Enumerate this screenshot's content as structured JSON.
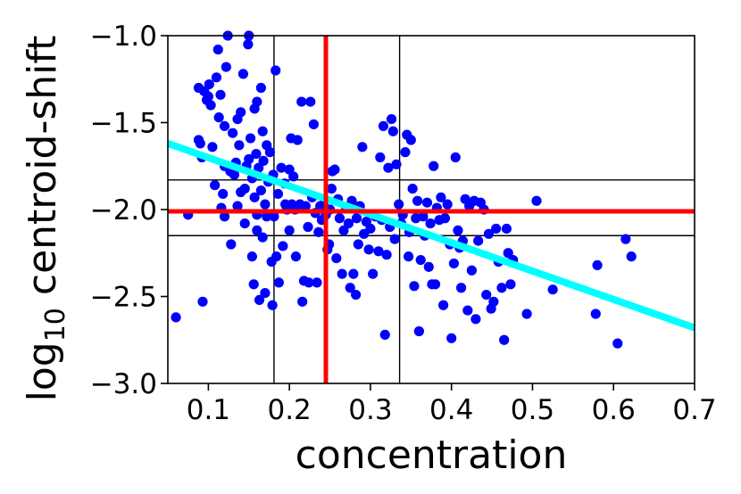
{
  "chart_data": {
    "type": "scatter",
    "xlabel": "concentration",
    "ylabel_main": "log",
    "ylabel_sub": "10",
    "ylabel_rest": " centroid-shift",
    "xlim": [
      0.05,
      0.7
    ],
    "ylim": [
      -3.0,
      -1.0
    ],
    "xticks": [
      0.1,
      0.2,
      0.3,
      0.4,
      0.5,
      0.6,
      0.7
    ],
    "xtick_labels": [
      "0.1",
      "0.2",
      "0.3",
      "0.4",
      "0.5",
      "0.6",
      "0.7"
    ],
    "yticks": [
      -1.0,
      -1.5,
      -2.0,
      -2.5,
      -3.0
    ],
    "ytick_labels": [
      "−1.0",
      "−1.5",
      "−2.0",
      "−2.5",
      "−3.0"
    ],
    "grid": false,
    "colors": {
      "points": "#0000ff",
      "fit": "#00ffff",
      "median": "#ff0000",
      "quartile": "#000000"
    },
    "fit_line": {
      "x": [
        0.05,
        0.7
      ],
      "y": [
        -1.62,
        -2.68
      ]
    },
    "median_lines": {
      "x": 0.245,
      "y": -2.01
    },
    "quartile_lines": {
      "x": [
        0.181,
        0.336
      ],
      "y": [
        -1.83,
        -2.15
      ]
    },
    "points": [
      [
        0.06,
        -2.62
      ],
      [
        0.075,
        -2.03
      ],
      [
        0.088,
        -1.3
      ],
      [
        0.088,
        -1.6
      ],
      [
        0.09,
        -1.62
      ],
      [
        0.092,
        -1.7
      ],
      [
        0.093,
        -2.53
      ],
      [
        0.095,
        -1.32
      ],
      [
        0.098,
        -1.37
      ],
      [
        0.1,
        -1.35
      ],
      [
        0.101,
        -1.28
      ],
      [
        0.103,
        -1.4
      ],
      [
        0.105,
        -1.64
      ],
      [
        0.108,
        -1.86
      ],
      [
        0.11,
        -1.24
      ],
      [
        0.112,
        -1.08
      ],
      [
        0.113,
        -1.47
      ],
      [
        0.115,
        -1.34
      ],
      [
        0.116,
        -1.99
      ],
      [
        0.118,
        -1.91
      ],
      [
        0.12,
        -1.75
      ],
      [
        0.12,
        -2.04
      ],
      [
        0.12,
        -1.52
      ],
      [
        0.122,
        -1.18
      ],
      [
        0.124,
        -1.0
      ],
      [
        0.127,
        -1.78
      ],
      [
        0.128,
        -2.2
      ],
      [
        0.13,
        -1.56
      ],
      [
        0.132,
        -1.8
      ],
      [
        0.134,
        -1.73
      ],
      [
        0.136,
        -1.98
      ],
      [
        0.136,
        -1.48
      ],
      [
        0.138,
        -1.63
      ],
      [
        0.14,
        -1.44
      ],
      [
        0.14,
        -1.9
      ],
      [
        0.143,
        -1.22
      ],
      [
        0.145,
        -1.88
      ],
      [
        0.145,
        -2.08
      ],
      [
        0.147,
        -1.75
      ],
      [
        0.149,
        -1.05
      ],
      [
        0.15,
        -1.0
      ],
      [
        0.15,
        -1.71
      ],
      [
        0.152,
        -1.59
      ],
      [
        0.154,
        -1.82
      ],
      [
        0.154,
        -2.27
      ],
      [
        0.156,
        -2.43
      ],
      [
        0.157,
        -1.42
      ],
      [
        0.157,
        -1.93
      ],
      [
        0.159,
        -1.68
      ],
      [
        0.16,
        -1.38
      ],
      [
        0.16,
        -2.03
      ],
      [
        0.16,
        -2.12
      ],
      [
        0.162,
        -1.76
      ],
      [
        0.163,
        -2.52
      ],
      [
        0.165,
        -1.3
      ],
      [
        0.165,
        -1.89
      ],
      [
        0.167,
        -1.55
      ],
      [
        0.167,
        -2.16
      ],
      [
        0.168,
        -1.72
      ],
      [
        0.17,
        -1.97
      ],
      [
        0.17,
        -2.48
      ],
      [
        0.172,
        -1.63
      ],
      [
        0.172,
        -2.04
      ],
      [
        0.174,
        -1.84
      ],
      [
        0.176,
        -1.67
      ],
      [
        0.178,
        -2.3
      ],
      [
        0.179,
        -2.55
      ],
      [
        0.18,
        -1.8
      ],
      [
        0.181,
        -2.04
      ],
      [
        0.183,
        -1.2
      ],
      [
        0.184,
        -2.27
      ],
      [
        0.186,
        -1.91
      ],
      [
        0.187,
        -2.42
      ],
      [
        0.19,
        -1.76
      ],
      [
        0.192,
        -2.21
      ],
      [
        0.194,
        -1.85
      ],
      [
        0.195,
        -1.97
      ],
      [
        0.197,
        -2.0
      ],
      [
        0.2,
        -1.77
      ],
      [
        0.2,
        -2.12
      ],
      [
        0.202,
        -1.59
      ],
      [
        0.203,
        -1.97
      ],
      [
        0.205,
        -1.81
      ],
      [
        0.207,
        -2.0
      ],
      [
        0.208,
        -2.27
      ],
      [
        0.21,
        -1.6
      ],
      [
        0.213,
        -1.97
      ],
      [
        0.215,
        -1.38
      ],
      [
        0.216,
        -2.53
      ],
      [
        0.218,
        -2.41
      ],
      [
        0.22,
        -1.98
      ],
      [
        0.223,
        -2.1
      ],
      [
        0.224,
        -2.42
      ],
      [
        0.226,
        -1.38
      ],
      [
        0.228,
        -1.93
      ],
      [
        0.23,
        -1.51
      ],
      [
        0.232,
        -2.02
      ],
      [
        0.234,
        -2.42
      ],
      [
        0.236,
        -2.13
      ],
      [
        0.238,
        -1.98
      ],
      [
        0.24,
        -2.06
      ],
      [
        0.242,
        -1.97
      ],
      [
        0.245,
        -2.03
      ],
      [
        0.247,
        -2.23
      ],
      [
        0.249,
        -2.2
      ],
      [
        0.25,
        -2.0
      ],
      [
        0.252,
        -1.88
      ],
      [
        0.253,
        -1.78
      ],
      [
        0.256,
        -1.77
      ],
      [
        0.258,
        -2.28
      ],
      [
        0.26,
        -1.94
      ],
      [
        0.262,
        -2.05
      ],
      [
        0.265,
        -2.37
      ],
      [
        0.267,
        -2.12
      ],
      [
        0.27,
        -1.99
      ],
      [
        0.273,
        -2.08
      ],
      [
        0.275,
        -2.45
      ],
      [
        0.277,
        -1.95
      ],
      [
        0.279,
        -2.37
      ],
      [
        0.282,
        -2.49
      ],
      [
        0.283,
        -2.05
      ],
      [
        0.285,
        -2.2
      ],
      [
        0.287,
        -1.98
      ],
      [
        0.29,
        -1.64
      ],
      [
        0.292,
        -2.14
      ],
      [
        0.295,
        -2.07
      ],
      [
        0.298,
        -2.23
      ],
      [
        0.3,
        -2.11
      ],
      [
        0.303,
        -2.37
      ],
      [
        0.306,
        -2.04
      ],
      [
        0.31,
        -2.24
      ],
      [
        0.312,
        -1.7
      ],
      [
        0.314,
        -2.06
      ],
      [
        0.316,
        -1.52
      ],
      [
        0.318,
        -2.72
      ],
      [
        0.32,
        -2.26
      ],
      [
        0.322,
        -1.76
      ],
      [
        0.324,
        -2.1
      ],
      [
        0.326,
        -1.48
      ],
      [
        0.328,
        -1.55
      ],
      [
        0.33,
        -2.17
      ],
      [
        0.332,
        -1.74
      ],
      [
        0.335,
        -1.97
      ],
      [
        0.338,
        -2.08
      ],
      [
        0.34,
        -2.03
      ],
      [
        0.343,
        -1.67
      ],
      [
        0.345,
        -1.57
      ],
      [
        0.347,
        -2.27
      ],
      [
        0.348,
        -2.13
      ],
      [
        0.35,
        -1.6
      ],
      [
        0.352,
        -1.88
      ],
      [
        0.354,
        -2.44
      ],
      [
        0.356,
        -2.05
      ],
      [
        0.358,
        -1.95
      ],
      [
        0.36,
        -2.7
      ],
      [
        0.362,
        -2.29
      ],
      [
        0.365,
        -2.04
      ],
      [
        0.367,
        -2.15
      ],
      [
        0.37,
        -1.96
      ],
      [
        0.372,
        -2.33
      ],
      [
        0.374,
        -2.08
      ],
      [
        0.376,
        -2.43
      ],
      [
        0.378,
        -1.75
      ],
      [
        0.38,
        -2.43
      ],
      [
        0.382,
        -1.99
      ],
      [
        0.385,
        -2.06
      ],
      [
        0.387,
        -1.93
      ],
      [
        0.39,
        -2.55
      ],
      [
        0.392,
        -2.05
      ],
      [
        0.395,
        -1.97
      ],
      [
        0.398,
        -2.2
      ],
      [
        0.4,
        -2.74
      ],
      [
        0.403,
        -2.31
      ],
      [
        0.405,
        -1.7
      ],
      [
        0.408,
        -2.12
      ],
      [
        0.41,
        -2.22
      ],
      [
        0.412,
        -2.45
      ],
      [
        0.414,
        -2.18
      ],
      [
        0.417,
        -1.94
      ],
      [
        0.42,
        -2.58
      ],
      [
        0.422,
        -1.98
      ],
      [
        0.425,
        -2.35
      ],
      [
        0.428,
        -1.95
      ],
      [
        0.43,
        -2.63
      ],
      [
        0.433,
        -2.18
      ],
      [
        0.436,
        -1.96
      ],
      [
        0.44,
        -2.0
      ],
      [
        0.443,
        -2.49
      ],
      [
        0.446,
        -2.14
      ],
      [
        0.449,
        -2.57
      ],
      [
        0.452,
        -2.53
      ],
      [
        0.455,
        -2.11
      ],
      [
        0.458,
        -2.3
      ],
      [
        0.462,
        -2.45
      ],
      [
        0.465,
        -2.75
      ],
      [
        0.468,
        -2.11
      ],
      [
        0.47,
        -2.25
      ],
      [
        0.473,
        -2.43
      ],
      [
        0.476,
        -2.29
      ],
      [
        0.493,
        -2.6
      ],
      [
        0.505,
        -1.95
      ],
      [
        0.525,
        -2.46
      ],
      [
        0.578,
        -2.6
      ],
      [
        0.58,
        -2.32
      ],
      [
        0.605,
        -2.77
      ],
      [
        0.615,
        -2.17
      ],
      [
        0.622,
        -2.27
      ]
    ]
  }
}
